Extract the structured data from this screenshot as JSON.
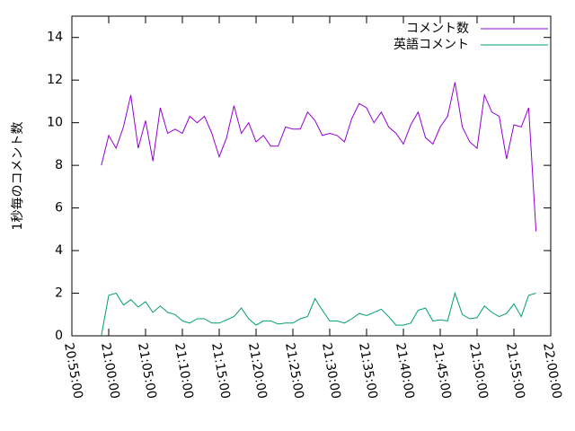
{
  "chart_data": {
    "type": "line",
    "y_label": "1秒毎のコメント数",
    "x": [
      "20:59:00",
      "21:00:00",
      "21:01:00",
      "21:02:00",
      "21:03:00",
      "21:04:00",
      "21:05:00",
      "21:06:00",
      "21:07:00",
      "21:08:00",
      "21:09:00",
      "21:10:00",
      "21:11:00",
      "21:12:00",
      "21:13:00",
      "21:14:00",
      "21:15:00",
      "21:16:00",
      "21:17:00",
      "21:18:00",
      "21:19:00",
      "21:20:00",
      "21:21:00",
      "21:22:00",
      "21:23:00",
      "21:24:00",
      "21:25:00",
      "21:26:00",
      "21:27:00",
      "21:28:00",
      "21:29:00",
      "21:30:00",
      "21:31:00",
      "21:32:00",
      "21:33:00",
      "21:34:00",
      "21:35:00",
      "21:36:00",
      "21:37:00",
      "21:38:00",
      "21:39:00",
      "21:40:00",
      "21:41:00",
      "21:42:00",
      "21:43:00",
      "21:44:00",
      "21:45:00",
      "21:46:00",
      "21:47:00",
      "21:48:00",
      "21:49:00",
      "21:50:00",
      "21:51:00",
      "21:52:00",
      "21:53:00",
      "21:54:00",
      "21:55:00",
      "21:56:00",
      "21:57:00",
      "21:58:00"
    ],
    "series": [
      {
        "name": "コメント数",
        "color": "#9400d3",
        "values": [
          8.0,
          9.4,
          8.8,
          9.8,
          11.3,
          8.8,
          10.1,
          8.2,
          10.7,
          9.5,
          9.7,
          9.5,
          10.3,
          10.0,
          10.3,
          9.5,
          8.4,
          9.3,
          10.8,
          9.5,
          10.0,
          9.1,
          9.4,
          8.9,
          8.9,
          9.8,
          9.7,
          9.7,
          10.5,
          10.1,
          9.4,
          9.5,
          9.4,
          9.1,
          10.2,
          10.9,
          10.7,
          10.0,
          10.5,
          9.8,
          9.5,
          9.0,
          9.9,
          10.5,
          9.3,
          9.0,
          9.8,
          10.3,
          11.9,
          9.8,
          9.1,
          8.8,
          11.3,
          10.5,
          10.3,
          8.3,
          9.9,
          9.8,
          10.7,
          4.9
        ]
      },
      {
        "name": "英語コメント",
        "color": "#009e73",
        "values": [
          0.0,
          1.9,
          2.0,
          1.45,
          1.7,
          1.35,
          1.6,
          1.1,
          1.4,
          1.1,
          1.0,
          0.7,
          0.6,
          0.8,
          0.8,
          0.6,
          0.6,
          0.75,
          0.9,
          1.3,
          0.8,
          0.5,
          0.7,
          0.7,
          0.55,
          0.6,
          0.6,
          0.8,
          0.9,
          1.75,
          1.2,
          0.7,
          0.7,
          0.6,
          0.8,
          1.05,
          0.95,
          1.1,
          1.25,
          0.9,
          0.5,
          0.5,
          0.6,
          1.2,
          1.3,
          0.7,
          0.75,
          0.7,
          2.0,
          1.0,
          0.8,
          0.85,
          1.4,
          1.1,
          0.9,
          1.05,
          1.5,
          0.9,
          1.9,
          2.0
        ]
      }
    ],
    "xlim": [
      "20:55:00",
      "22:00:00"
    ],
    "xticks": [
      "20:55:00",
      "21:00:00",
      "21:05:00",
      "21:10:00",
      "21:15:00",
      "21:20:00",
      "21:25:00",
      "21:30:00",
      "21:35:00",
      "21:40:00",
      "21:45:00",
      "21:50:00",
      "21:55:00",
      "22:00:00"
    ],
    "ylim": [
      0,
      15
    ],
    "yticks": [
      0,
      2,
      4,
      6,
      8,
      10,
      12,
      14
    ],
    "legend": "top-right"
  }
}
